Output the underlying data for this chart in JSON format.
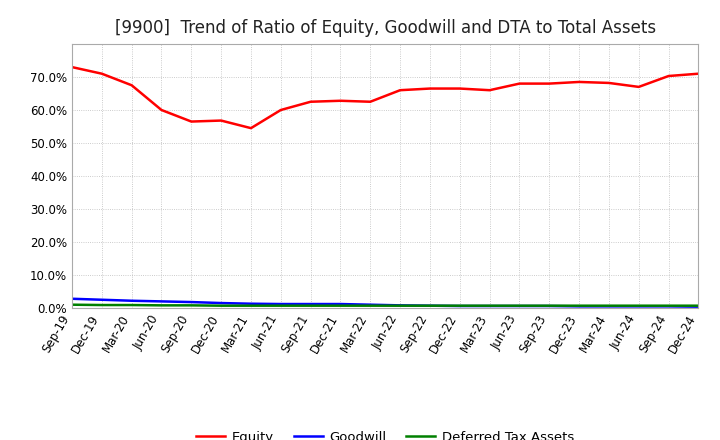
{
  "title": "[9900]  Trend of Ratio of Equity, Goodwill and DTA to Total Assets",
  "labels": [
    "Sep-19",
    "Dec-19",
    "Mar-20",
    "Jun-20",
    "Sep-20",
    "Dec-20",
    "Mar-21",
    "Jun-21",
    "Sep-21",
    "Dec-21",
    "Mar-22",
    "Jun-22",
    "Sep-22",
    "Dec-22",
    "Mar-23",
    "Jun-23",
    "Sep-23",
    "Dec-23",
    "Mar-24",
    "Jun-24",
    "Sep-24",
    "Dec-24"
  ],
  "equity": [
    0.73,
    0.71,
    0.675,
    0.6,
    0.565,
    0.568,
    0.545,
    0.6,
    0.625,
    0.628,
    0.625,
    0.66,
    0.665,
    0.665,
    0.66,
    0.68,
    0.68,
    0.685,
    0.682,
    0.67,
    0.703,
    0.71
  ],
  "goodwill": [
    0.028,
    0.025,
    0.022,
    0.02,
    0.018,
    0.015,
    0.013,
    0.012,
    0.012,
    0.012,
    0.01,
    0.008,
    0.007,
    0.006,
    0.006,
    0.006,
    0.006,
    0.005,
    0.005,
    0.005,
    0.005,
    0.004
  ],
  "dta": [
    0.01,
    0.009,
    0.009,
    0.008,
    0.008,
    0.007,
    0.007,
    0.007,
    0.007,
    0.007,
    0.007,
    0.007,
    0.007,
    0.007,
    0.007,
    0.007,
    0.007,
    0.007,
    0.007,
    0.007,
    0.007,
    0.007
  ],
  "equity_color": "#FF0000",
  "goodwill_color": "#0000FF",
  "dta_color": "#008000",
  "background_color": "#FFFFFF",
  "grid_color": "#BBBBBB",
  "ylim": [
    0.0,
    0.8
  ],
  "yticks": [
    0.0,
    0.1,
    0.2,
    0.3,
    0.4,
    0.5,
    0.6,
    0.7
  ],
  "legend_labels": [
    "Equity",
    "Goodwill",
    "Deferred Tax Assets"
  ],
  "title_fontsize": 12,
  "tick_fontsize": 8.5,
  "legend_fontsize": 9.5,
  "linewidth": 1.8
}
